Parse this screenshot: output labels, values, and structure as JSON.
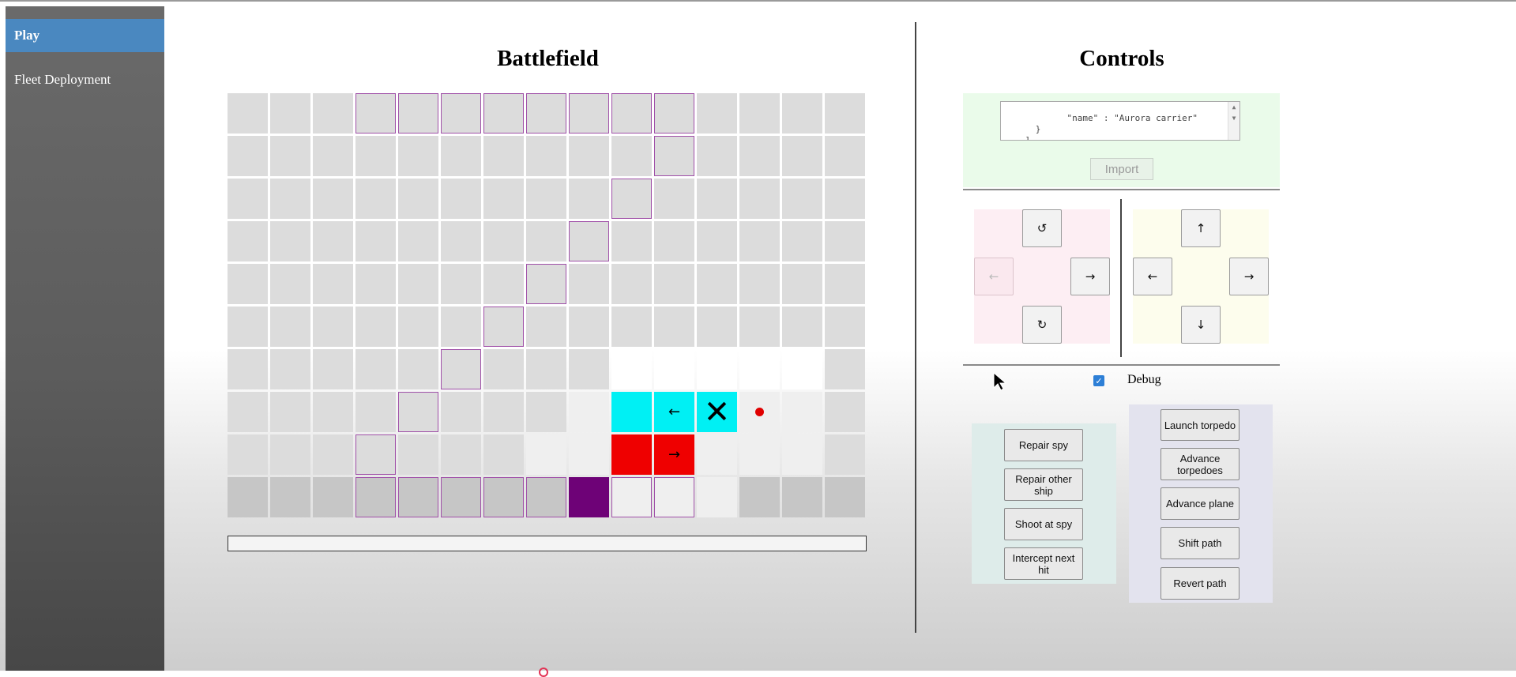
{
  "nav": {
    "items": [
      {
        "label": "Play",
        "active": true
      },
      {
        "label": "Fleet Deployment",
        "active": false
      }
    ]
  },
  "battlefield": {
    "title": "Battlefield",
    "rows": 10,
    "cols": 15,
    "cells": [
      {
        "r": 0,
        "c": 3,
        "outline": true
      },
      {
        "r": 0,
        "c": 4,
        "outline": true
      },
      {
        "r": 0,
        "c": 5,
        "outline": true
      },
      {
        "r": 0,
        "c": 6,
        "outline": true
      },
      {
        "r": 0,
        "c": 7,
        "outline": true
      },
      {
        "r": 0,
        "c": 8,
        "outline": true
      },
      {
        "r": 0,
        "c": 9,
        "outline": true
      },
      {
        "r": 0,
        "c": 10,
        "outline": true
      },
      {
        "r": 1,
        "c": 10,
        "outline": true
      },
      {
        "r": 2,
        "c": 9,
        "outline": true
      },
      {
        "r": 3,
        "c": 8,
        "outline": true
      },
      {
        "r": 4,
        "c": 7,
        "outline": true
      },
      {
        "r": 5,
        "c": 6,
        "outline": true
      },
      {
        "r": 6,
        "c": 5,
        "outline": true
      },
      {
        "r": 6,
        "c": 9,
        "fill": "white"
      },
      {
        "r": 6,
        "c": 10,
        "fill": "white"
      },
      {
        "r": 6,
        "c": 11,
        "fill": "white"
      },
      {
        "r": 6,
        "c": 12,
        "fill": "white"
      },
      {
        "r": 6,
        "c": 13,
        "fill": "white"
      },
      {
        "r": 7,
        "c": 4,
        "outline": true
      },
      {
        "r": 7,
        "c": 8,
        "fill": "light"
      },
      {
        "r": 7,
        "c": 9,
        "fill": "cyan"
      },
      {
        "r": 7,
        "c": 10,
        "fill": "cyan",
        "mark": "arrow",
        "symbol": "←"
      },
      {
        "r": 7,
        "c": 11,
        "fill": "cyan",
        "mark": "x",
        "symbol": "✕"
      },
      {
        "r": 7,
        "c": 12,
        "fill": "light",
        "mark": "dot"
      },
      {
        "r": 7,
        "c": 13,
        "fill": "light"
      },
      {
        "r": 8,
        "c": 3,
        "outline": true
      },
      {
        "r": 8,
        "c": 7,
        "fill": "light"
      },
      {
        "r": 8,
        "c": 8,
        "fill": "light"
      },
      {
        "r": 8,
        "c": 9,
        "fill": "red"
      },
      {
        "r": 8,
        "c": 10,
        "fill": "red",
        "mark": "arrow",
        "symbol": "→"
      },
      {
        "r": 8,
        "c": 11,
        "fill": "light"
      },
      {
        "r": 8,
        "c": 12,
        "fill": "light"
      },
      {
        "r": 8,
        "c": 13,
        "fill": "light"
      },
      {
        "r": 9,
        "c": 0,
        "fill": "dark"
      },
      {
        "r": 9,
        "c": 1,
        "fill": "dark"
      },
      {
        "r": 9,
        "c": 2,
        "fill": "dark"
      },
      {
        "r": 9,
        "c": 3,
        "outline": true,
        "fill": "dark"
      },
      {
        "r": 9,
        "c": 4,
        "outline": true,
        "fill": "dark"
      },
      {
        "r": 9,
        "c": 5,
        "outline": true,
        "fill": "dark"
      },
      {
        "r": 9,
        "c": 6,
        "outline": true,
        "fill": "dark"
      },
      {
        "r": 9,
        "c": 7,
        "outline": true,
        "fill": "dark"
      },
      {
        "r": 9,
        "c": 8,
        "fill": "purple"
      },
      {
        "r": 9,
        "c": 9,
        "outline": true,
        "fill": "light"
      },
      {
        "r": 9,
        "c": 10,
        "outline": true,
        "fill": "light"
      },
      {
        "r": 9,
        "c": 11,
        "fill": "light"
      },
      {
        "r": 9,
        "c": 12,
        "fill": "dark"
      },
      {
        "r": 9,
        "c": 13,
        "fill": "dark"
      },
      {
        "r": 9,
        "c": 14,
        "fill": "dark"
      }
    ]
  },
  "controls": {
    "title": "Controls",
    "json_text": "        \"name\" : \"Aurora carrier\"\n      }\n    ]\n}",
    "import_label": "Import",
    "rotate_pad": {
      "up": "↺",
      "left": "←",
      "right": "→",
      "down": "↻"
    },
    "move_pad": {
      "up": "↑",
      "left": "←",
      "right": "→",
      "down": "↓"
    },
    "debug_label": "Debug",
    "debug_checked": true,
    "spy_actions": [
      "Repair spy",
      "Repair other ship",
      "Shoot at spy",
      "Intercept next hit"
    ],
    "weapon_actions": [
      "Launch torpedo",
      "Advance torpedoes",
      "Advance plane",
      "Shift path",
      "Revert path"
    ]
  },
  "colors": {
    "accent": "#4a88c0",
    "ship_outline": "#a050a8",
    "cyan": "#00f0f4",
    "hit_red": "#ef0000",
    "purple": "#6e0277"
  }
}
